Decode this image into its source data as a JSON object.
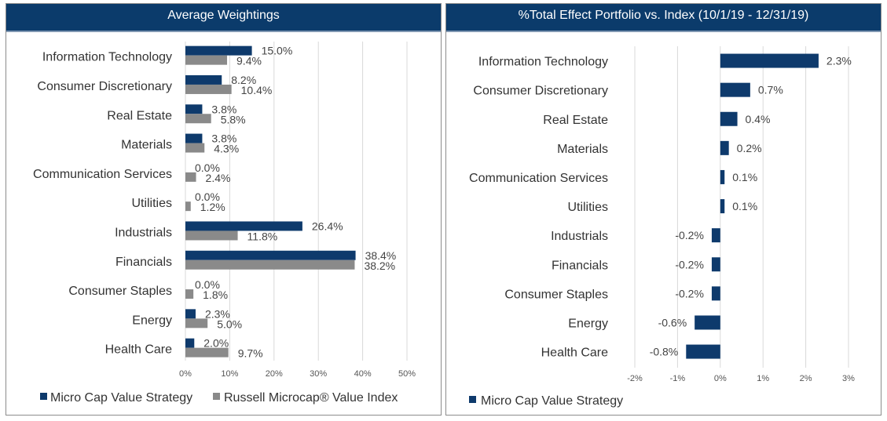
{
  "colors": {
    "header_bg": "#0b3b6b",
    "strategy": "#0e3a6c",
    "index": "#8a8a8a",
    "gridline": "#d9d9d9"
  },
  "chart_data": [
    {
      "type": "bar",
      "orientation": "horizontal",
      "title": "Average Weightings",
      "categories": [
        "Information Technology",
        "Consumer Discretionary",
        "Real Estate",
        "Materials",
        "Communication Services",
        "Utilities",
        "Industrials",
        "Financials",
        "Consumer Staples",
        "Energy",
        "Health Care"
      ],
      "series": [
        {
          "name": "Micro Cap Value Strategy",
          "values": [
            15.0,
            8.2,
            3.8,
            3.8,
            0.0,
            0.0,
            26.4,
            38.4,
            0.0,
            2.3,
            2.0
          ],
          "labels": [
            "15.0%",
            "8.2%",
            "3.8%",
            "3.8%",
            "0.0%",
            "0.0%",
            "26.4%",
            "38.4%",
            "0.0%",
            "2.3%",
            "2.0%"
          ]
        },
        {
          "name": "Russell Microcap® Value Index",
          "values": [
            9.4,
            10.4,
            5.8,
            4.3,
            2.4,
            1.2,
            11.8,
            38.2,
            1.8,
            5.0,
            9.7
          ],
          "labels": [
            "9.4%",
            "10.4%",
            "5.8%",
            "4.3%",
            "2.4%",
            "1.2%",
            "11.8%",
            "38.2%",
            "1.8%",
            "5.0%",
            "9.7%"
          ]
        }
      ],
      "xlim": [
        0,
        50
      ],
      "xticks": [
        0,
        10,
        20,
        30,
        40,
        50
      ],
      "xtick_labels": [
        "0%",
        "10%",
        "20%",
        "30%",
        "40%",
        "50%"
      ],
      "grid": true,
      "legend": "bottom"
    },
    {
      "type": "bar",
      "orientation": "horizontal",
      "title": "%Total Effect Portfolio vs. Index (10/1/19 - 12/31/19)",
      "categories": [
        "Information Technology",
        "Consumer Discretionary",
        "Real Estate",
        "Materials",
        "Communication Services",
        "Utilities",
        "Industrials",
        "Financials",
        "Consumer Staples",
        "Energy",
        "Health Care"
      ],
      "series": [
        {
          "name": "Micro Cap Value Strategy",
          "values": [
            2.3,
            0.7,
            0.4,
            0.2,
            0.1,
            0.1,
            -0.2,
            -0.2,
            -0.2,
            -0.6,
            -0.8
          ],
          "labels": [
            "2.3%",
            "0.7%",
            "0.4%",
            "0.2%",
            "0.1%",
            "0.1%",
            "-0.2%",
            "-0.2%",
            "-0.2%",
            "-0.6%",
            "-0.8%"
          ]
        }
      ],
      "xlim": [
        -2,
        3
      ],
      "xticks": [
        -2,
        -1,
        0,
        1,
        2,
        3
      ],
      "xtick_labels": [
        "-2%",
        "-1%",
        "0%",
        "1%",
        "2%",
        "3%"
      ],
      "grid": true,
      "legend": "bottom-left"
    }
  ]
}
